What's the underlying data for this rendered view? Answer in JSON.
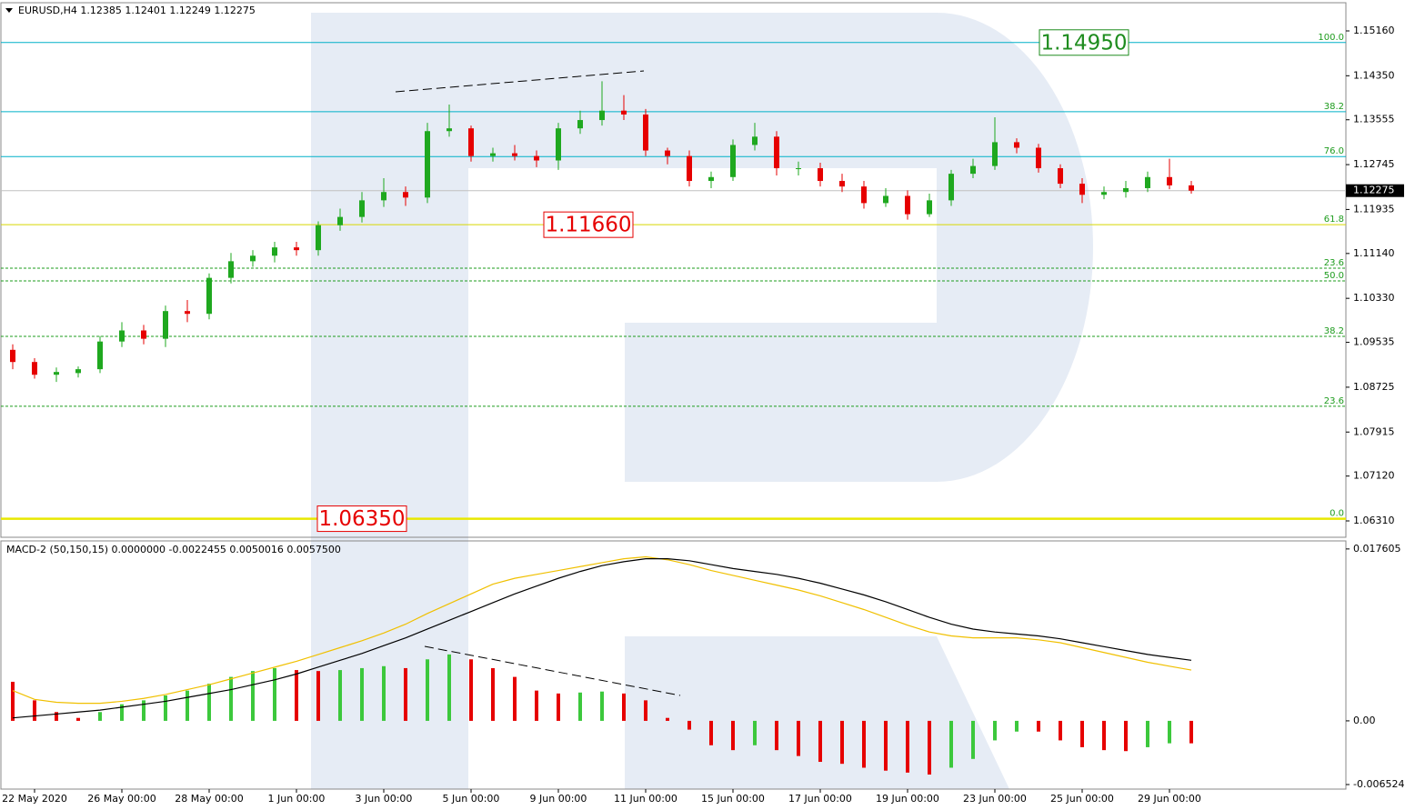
{
  "chart_data": {
    "type": "candlestick",
    "header": "EURUSD,H4  1.12385 1.12401 1.12249 1.12275",
    "categories": [
      null,
      "22 May 2020",
      null,
      null,
      null,
      "26 May 00:00",
      null,
      null,
      null,
      "28 May 00:00",
      null,
      null,
      null,
      "1 Jun 00:00",
      null,
      null,
      null,
      "3 Jun 00:00",
      null,
      null,
      null,
      "5 Jun 00:00",
      null,
      null,
      null,
      "9 Jun 00:00",
      null,
      null,
      null,
      "11 Jun 00:00",
      null,
      null,
      null,
      "15 Jun 00:00",
      null,
      null,
      null,
      "17 Jun 00:00",
      null,
      null,
      null,
      "19 Jun 00:00",
      null,
      null,
      null,
      "23 Jun 00:00",
      null,
      null,
      null,
      "25 Jun 00:00",
      null,
      null,
      null,
      "29 Jun 00:00",
      null
    ],
    "open": [
      1.094,
      1.0918,
      1.0895,
      1.0898,
      1.0905,
      1.0955,
      1.0975,
      1.096,
      1.101,
      1.1005,
      1.107,
      1.11,
      1.111,
      1.1125,
      1.112,
      1.1165,
      1.118,
      1.121,
      1.1225,
      1.1215,
      1.1335,
      1.134,
      1.129,
      1.1295,
      1.129,
      1.1282,
      1.134,
      1.1355,
      1.1372,
      1.1365,
      1.13,
      1.129,
      1.1245,
      1.1252,
      1.131,
      1.1325,
      1.1268,
      1.1268,
      1.1245,
      1.1235,
      1.1205,
      1.1218,
      1.1185,
      1.121,
      1.1258,
      1.1272,
      1.1315,
      1.1305,
      1.1268,
      1.124,
      1.122,
      1.1225,
      1.1232,
      1.1252,
      1.1237
    ],
    "high": [
      1.095,
      1.0925,
      1.0908,
      1.091,
      1.0965,
      1.099,
      1.0985,
      1.102,
      1.103,
      1.1078,
      1.1115,
      1.112,
      1.1135,
      1.1135,
      1.1172,
      1.1195,
      1.1225,
      1.125,
      1.1235,
      1.135,
      1.1383,
      1.1345,
      1.1305,
      1.131,
      1.13,
      1.135,
      1.1372,
      1.1425,
      1.14,
      1.1375,
      1.1305,
      1.13,
      1.1262,
      1.132,
      1.135,
      1.1335,
      1.128,
      1.1278,
      1.1258,
      1.1245,
      1.1232,
      1.1228,
      1.1222,
      1.1265,
      1.1285,
      1.136,
      1.1322,
      1.1312,
      1.1275,
      1.125,
      1.1235,
      1.1245,
      1.1262,
      1.1285,
      1.1245
    ],
    "low": [
      1.0905,
      1.0888,
      1.0882,
      1.089,
      1.0898,
      1.0945,
      1.095,
      1.0945,
      1.099,
      1.0995,
      1.106,
      1.109,
      1.1098,
      1.111,
      1.111,
      1.1155,
      1.117,
      1.1198,
      1.12,
      1.1205,
      1.1325,
      1.128,
      1.128,
      1.1282,
      1.127,
      1.1265,
      1.133,
      1.1345,
      1.1355,
      1.129,
      1.1275,
      1.1235,
      1.1232,
      1.1245,
      1.13,
      1.1255,
      1.1255,
      1.1235,
      1.1225,
      1.1195,
      1.1198,
      1.1175,
      1.118,
      1.12,
      1.125,
      1.1265,
      1.1295,
      1.126,
      1.1232,
      1.1205,
      1.1212,
      1.1215,
      1.1225,
      1.123,
      1.1222
    ],
    "close": [
      1.0918,
      1.0895,
      1.09,
      1.0905,
      1.0955,
      1.0975,
      1.096,
      1.101,
      1.1005,
      1.107,
      1.11,
      1.111,
      1.1125,
      1.112,
      1.1165,
      1.118,
      1.121,
      1.1225,
      1.1215,
      1.1335,
      1.134,
      1.129,
      1.1295,
      1.129,
      1.1282,
      1.134,
      1.1355,
      1.1372,
      1.1365,
      1.13,
      1.129,
      1.1245,
      1.1252,
      1.131,
      1.1325,
      1.1268,
      1.1268,
      1.1245,
      1.1235,
      1.1205,
      1.1218,
      1.1185,
      1.121,
      1.1258,
      1.1272,
      1.1315,
      1.1305,
      1.1268,
      1.124,
      1.122,
      1.1225,
      1.1232,
      1.1252,
      1.1237,
      1.12275
    ],
    "up_color": "#1fa81f",
    "down_color": "#e60000",
    "ylim": [
      1.06031,
      1.15636
    ],
    "yticks": [
      {
        "value": 1.1516,
        "label": "1.15160"
      },
      {
        "value": 1.1435,
        "label": "1.14350"
      },
      {
        "value": 1.13555,
        "label": "1.13555"
      },
      {
        "value": 1.12745,
        "label": "1.12745"
      },
      {
        "value": 1.11935,
        "label": "1.11935"
      },
      {
        "value": 1.1114,
        "label": "1.11140"
      },
      {
        "value": 1.1033,
        "label": "1.10330"
      },
      {
        "value": 1.09535,
        "label": "1.09535"
      },
      {
        "value": 1.08725,
        "label": "1.08725"
      },
      {
        "value": 1.07915,
        "label": "1.07915"
      },
      {
        "value": 1.0712,
        "label": "1.07120"
      },
      {
        "value": 1.0631,
        "label": "1.06310"
      }
    ],
    "last_price": {
      "value": 1.12275,
      "label": "1.12275"
    },
    "levels": [
      {
        "label": "100.0",
        "value": 1.1495,
        "color": "#00b0c8",
        "style": "solid"
      },
      {
        "label": "38.2",
        "value": 1.137,
        "color": "#00b0c8",
        "style": "solid"
      },
      {
        "label": "76.0",
        "value": 1.1289,
        "color": "#00b0c8",
        "style": "solid"
      },
      {
        "label": "61.8",
        "value": 1.1166,
        "color": "#d8d800",
        "style": "solid"
      },
      {
        "label": "23.6",
        "value": 1.10875,
        "color": "#1e9c1e",
        "style": "dashed"
      },
      {
        "label": "50.0",
        "value": 1.10645,
        "color": "#1e9c1e",
        "style": "dashed"
      },
      {
        "label": "38.2",
        "value": 1.09644,
        "color": "#1e9c1e",
        "style": "dashed"
      },
      {
        "label": "23.6",
        "value": 1.0838,
        "color": "#1e9c1e",
        "style": "dashed"
      },
      {
        "label": "0.0",
        "value": 1.0635,
        "color": "#e8e800",
        "style": "solid"
      }
    ],
    "annotations": [
      {
        "label": "1.14950",
        "value": 1.1495,
        "color": "#1e8c1e"
      },
      {
        "label": "1.11660",
        "value": 1.1166,
        "color": "#e60000"
      },
      {
        "label": "1.06350",
        "value": 1.0635,
        "color": "#e60000"
      }
    ],
    "macd": {
      "type": "histogram",
      "title": "MACD-2 (50,150,15) 0.0000000 -0.0022455 0.0050016 0.0057500",
      "values": [
        0.004,
        0.0021,
        0.0009,
        0.0003,
        0.0009,
        0.0017,
        0.0021,
        0.0026,
        0.0031,
        0.0038,
        0.0045,
        0.0051,
        0.0054,
        0.0052,
        0.0051,
        0.0052,
        0.0054,
        0.0056,
        0.0054,
        0.0063,
        0.0068,
        0.0063,
        0.0054,
        0.0045,
        0.0031,
        0.0028,
        0.0029,
        0.003,
        0.0028,
        0.0021,
        0.0003,
        -0.0009,
        -0.0025,
        -0.003,
        -0.0025,
        -0.003,
        -0.0036,
        -0.0042,
        -0.0044,
        -0.0048,
        -0.0051,
        -0.0053,
        -0.0055,
        -0.0048,
        -0.0039,
        -0.002,
        -0.0011,
        -0.0011,
        -0.002,
        -0.0027,
        -0.003,
        -0.0031,
        -0.0027,
        -0.0023,
        -0.0023
      ],
      "up_color": "#3cc83c",
      "down_color": "#e60000",
      "main": {
        "color": "#000000",
        "values": [
          0.0003,
          0.0005,
          0.0007,
          0.0009,
          0.0011,
          0.0014,
          0.0017,
          0.002,
          0.0024,
          0.0028,
          0.0032,
          0.0037,
          0.0042,
          0.0048,
          0.0055,
          0.0062,
          0.0069,
          0.0077,
          0.0085,
          0.0094,
          0.0103,
          0.0112,
          0.0121,
          0.013,
          0.0138,
          0.0146,
          0.0153,
          0.0159,
          0.0163,
          0.0166,
          0.0166,
          0.0164,
          0.016,
          0.0156,
          0.0153,
          0.015,
          0.0146,
          0.0141,
          0.0135,
          0.0129,
          0.0122,
          0.0114,
          0.0106,
          0.0099,
          0.0094,
          0.0091,
          0.0089,
          0.0087,
          0.0084,
          0.008,
          0.0076,
          0.0072,
          0.0068,
          0.0065,
          0.0062
        ]
      },
      "signal": {
        "color": "#f0c000",
        "values": [
          0.0031,
          0.0022,
          0.0019,
          0.0018,
          0.0018,
          0.002,
          0.0023,
          0.0027,
          0.0032,
          0.0037,
          0.0043,
          0.0049,
          0.0055,
          0.0061,
          0.0068,
          0.0075,
          0.0082,
          0.009,
          0.0099,
          0.011,
          0.012,
          0.013,
          0.014,
          0.0146,
          0.015,
          0.0154,
          0.0158,
          0.0162,
          0.0166,
          0.0168,
          0.0165,
          0.016,
          0.0154,
          0.0149,
          0.0144,
          0.0139,
          0.0134,
          0.0128,
          0.0121,
          0.0114,
          0.0106,
          0.0098,
          0.0091,
          0.0087,
          0.0085,
          0.0085,
          0.0085,
          0.0083,
          0.008,
          0.0075,
          0.007,
          0.0065,
          0.006,
          0.0056,
          0.0052
        ]
      },
      "ylim": [
        -0.00699,
        0.01815
      ],
      "yticks": [
        {
          "value": 0.017605,
          "label": "0.017605"
        },
        {
          "value": 0,
          "label": "0.00"
        },
        {
          "value": -0.006524,
          "label": "-0.006524"
        }
      ]
    }
  }
}
